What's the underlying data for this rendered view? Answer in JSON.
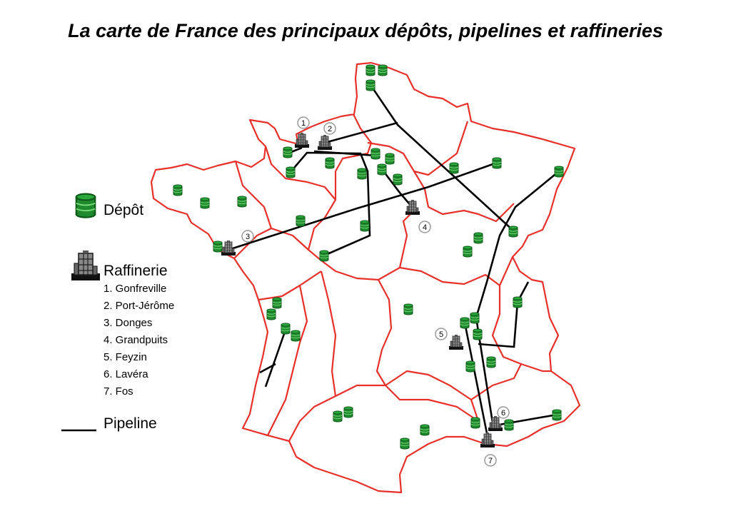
{
  "title": "La carte de France des principaux dépôts, pipelines et raffineries",
  "legend": {
    "depot_label": "Dépôt",
    "refinery_label": "Raffinerie",
    "pipeline_label": "Pipeline",
    "refineries": [
      "1. Gonfreville",
      "2. Port-Jérôme",
      "3. Donges",
      "4. Grandpuits",
      "5. Feyzin",
      "6. Lavéra",
      "7. Fos"
    ]
  },
  "refinery_markers": [
    "1",
    "2",
    "3",
    "4",
    "5",
    "6",
    "7"
  ],
  "colors": {
    "border": "#e8302a",
    "depot": "#1f8a2e",
    "depot_dark": "#0d5a18",
    "pipeline": "#000000",
    "refinery": "#333333"
  },
  "icons": {
    "depot": "oil-tank-icon",
    "refinery": "refinery-icon"
  }
}
